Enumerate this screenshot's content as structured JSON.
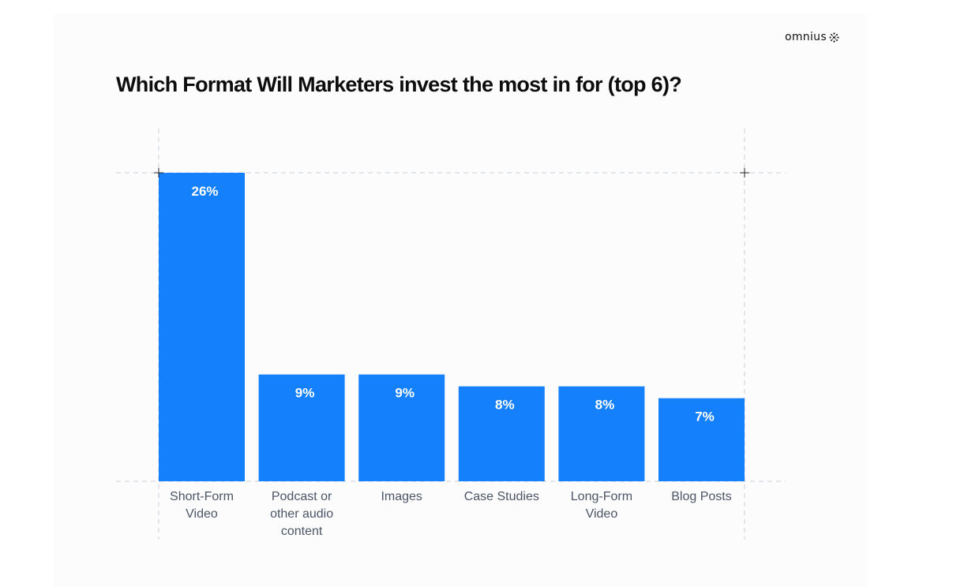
{
  "logo": {
    "text": "omnius",
    "icon": "sparkle-dots-icon"
  },
  "chart_data": {
    "type": "bar",
    "title": "Which Format Will Marketers invest the most in for (top 6)?",
    "categories": [
      [
        "Short-Form",
        "Video"
      ],
      [
        "Podcast or",
        "other audio",
        "content"
      ],
      [
        "Images"
      ],
      [
        "Case Studies"
      ],
      [
        "Long-Form",
        "Video"
      ],
      [
        "Blog Posts"
      ]
    ],
    "values": [
      26,
      9,
      9,
      8,
      8,
      7
    ],
    "value_labels": [
      "26%",
      "9%",
      "9%",
      "8%",
      "8%",
      "7%"
    ],
    "unit": "%",
    "ylim": [
      0,
      26
    ],
    "bar_color": "#1480fb",
    "label_color": "#ffffff",
    "tick_label_color": "#4b5565",
    "grid": true,
    "legend": "none"
  }
}
